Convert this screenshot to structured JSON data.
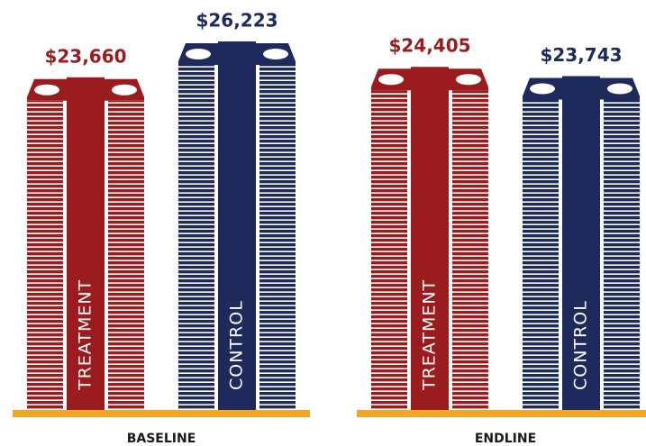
{
  "chart_data": {
    "type": "bar",
    "categories": [
      "BASELINE",
      "ENDLINE"
    ],
    "series": [
      {
        "name": "TREATMENT",
        "color": "#9b1c1f",
        "values": [
          23660,
          24405
        ],
        "value_labels": [
          "$23,660",
          "$24,405"
        ]
      },
      {
        "name": "CONTROL",
        "color": "#1f2a5c",
        "values": [
          26223,
          23743
        ],
        "value_labels": [
          "$26,223",
          "$23,743"
        ]
      }
    ],
    "ground_color": "#f5a623"
  }
}
